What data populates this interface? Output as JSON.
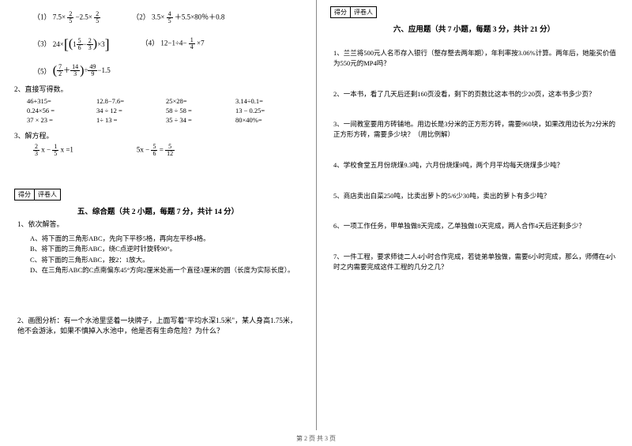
{
  "left": {
    "eqRow1": {
      "q1_label": "（1）",
      "q1_a": "7.5×",
      "q1_frac1_num": "2",
      "q1_frac1_den": "5",
      "q1_b": "−2.5×",
      "q1_frac2_num": "2",
      "q1_frac2_den": "5",
      "q2_label": "（2）",
      "q2_a": "3.5×",
      "q2_frac_num": "4",
      "q2_frac_den": "5",
      "q2_b": "＋5.5×80％＋0.8"
    },
    "eqRow2": {
      "q3_label": "（3）",
      "q3_a": "24×",
      "q3_inner_a": "1",
      "q3_inner_f1_num": "5",
      "q3_inner_f1_den": "6",
      "q3_inner_b": "−",
      "q3_inner_f2_num": "2",
      "q3_inner_f2_den": "3",
      "q3_tail": "×3",
      "q4_label": "（4）",
      "q4_a": "12−1÷4−",
      "q4_frac_num": "1",
      "q4_frac_den": "4",
      "q4_b": "×7"
    },
    "eqRow3": {
      "q5_label": "（5）",
      "q5_f1_num": "7",
      "q5_f1_den": "2",
      "q5_plus": "＋",
      "q5_f2_num": "14",
      "q5_f2_den": "3",
      "q5_div": "÷",
      "q5_f3_num": "49",
      "q5_f3_den": "9",
      "q5_tail": "−1.5"
    },
    "p2_title": "2、直接写得数。",
    "calc_rows": [
      [
        "46+315=",
        "12.8−7.6=",
        "25×28=",
        "3.14÷0.1="
      ],
      [
        "0.24×56 =",
        "34 ÷ 12 =",
        "58 ÷ 58 =",
        "13 − 0.25="
      ],
      [
        "37 × 23 =",
        "1÷ 13 =",
        "35 ÷ 34 =",
        "80×40%="
      ]
    ],
    "p3_title": "3、解方程。",
    "solve1_f1_num": "2",
    "solve1_f1_den": "3",
    "solve1_mid": " x − ",
    "solve1_f2_num": "1",
    "solve1_f2_den": "5",
    "solve1_tail": " x =1",
    "solve2_a": "5x − ",
    "solve2_f1_num": "5",
    "solve2_f1_den": "6",
    "solve2_eq": " = ",
    "solve2_f2_num": "5",
    "solve2_f2_den": "12",
    "score_label1": "得分",
    "score_label2": "评卷人",
    "section5_title": "五、综合题（共 2 小题，每题 7 分，共计 14 分）",
    "comp1_title": "1、依次解答。",
    "comp1_items": [
      "A、将下面的三角形ABC，先向下平移5格，再向左平移4格。",
      "B、将下面的三角形ABC，绕C点逆时针旋转90°。",
      "C、将下面的三角形ABC，按2：1放大。",
      "D、在三角形ABC的C点南偏东45°方向2厘米处画一个直径3厘米的圆（长度为实际长度）。"
    ],
    "comp2_text": "2、画图分析：有一个水池里坚着一块牌子，上面写着\"平均水深1.5米\"，某人身高1.75米，他不会游泳，如果不慎掉入水池中，他是否有生命危险？为什么？"
  },
  "right": {
    "score_label1": "得分",
    "score_label2": "评卷人",
    "section6_title": "六、应用题（共 7 小题，每题 3 分，共计 21 分）",
    "apps": [
      "1、兰兰将500元人名币存入银行（整存整去两年期），年利率按3.06%计算。两年后，她能买价值为550元的MP4吗？",
      "2、一本书，看了几天后还剩160页没看，剩下的页数比这本书的少20页，这本书多少页？",
      "3、一间教室要用方砖铺地。用边长是3分米的正方形方砖，需要960块，如果改用边长为2分米的正方形方砖，需要多少块？（用比例解）",
      "4、学校食堂五月份烧煤9.3吨，六月份烧煤9吨，两个月平均每天烧煤多少吨？",
      "5、商店卖出白菜250吨，比卖出萝卜的5/6少30吨，卖出的萝卜有多少吨？",
      "6、一项工作任务，甲单独做8天完成，乙单独做10天完成，两人合作4天后还剩多少？",
      "7、一件工程，要求师徒二人4小时合作完成，若徒弟单独做，需要6小时完成，那么，师傅在4小时之内需要完成这件工程的几分之几？"
    ]
  },
  "footer": "第 2 页 共 3 页",
  "colors": {
    "text": "#000000",
    "bg": "#ffffff",
    "divider": "#888888"
  }
}
